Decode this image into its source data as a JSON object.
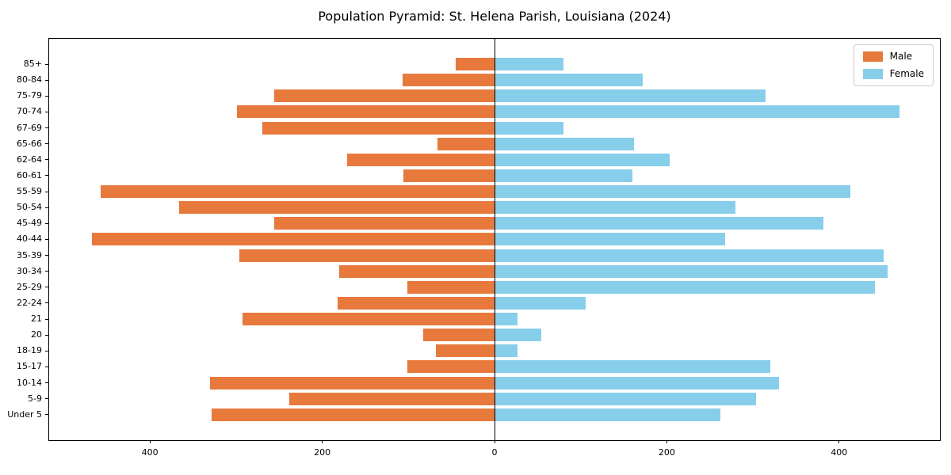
{
  "title": "Population Pyramid: St. Helena Parish, Louisiana (2024)",
  "legend": {
    "items": [
      {
        "label": "Male"
      },
      {
        "label": "Female"
      }
    ]
  },
  "colors": {
    "male": "#e8793d",
    "female": "#87ceeb",
    "axis": "#000000"
  },
  "chart_data": {
    "type": "bar",
    "variant": "population-pyramid",
    "title": "Population Pyramid: St. Helena Parish, Louisiana (2024)",
    "xlabel": "",
    "ylabel": "",
    "grid": false,
    "legend_position": "upper right",
    "categories_top_to_bottom": [
      "85+",
      "80-84",
      "75-79",
      "70-74",
      "67-69",
      "65-66",
      "62-64",
      "60-61",
      "55-59",
      "50-54",
      "45-49",
      "40-44",
      "35-39",
      "30-34",
      "25-29",
      "22-24",
      "21",
      "20",
      "18-19",
      "15-17",
      "10-14",
      "5-9",
      "Under 5"
    ],
    "series": [
      {
        "name": "Male",
        "side": "left",
        "color": "#e8793d",
        "values": [
          45,
          107,
          256,
          299,
          270,
          66,
          171,
          106,
          457,
          366,
          256,
          467,
          296,
          180,
          101,
          182,
          293,
          83,
          68,
          101,
          330,
          238,
          328
        ]
      },
      {
        "name": "Female",
        "side": "right",
        "color": "#87ceeb",
        "values": [
          80,
          172,
          315,
          470,
          80,
          162,
          203,
          160,
          413,
          280,
          382,
          268,
          452,
          456,
          442,
          106,
          27,
          54,
          27,
          320,
          330,
          304,
          262
        ]
      }
    ],
    "x_axis": {
      "xlim": [
        -517,
        517
      ],
      "ticks": [
        {
          "value": -400,
          "label": "400"
        },
        {
          "value": -200,
          "label": "200"
        },
        {
          "value": 0,
          "label": "0"
        },
        {
          "value": 200,
          "label": "200"
        },
        {
          "value": 400,
          "label": "400"
        }
      ]
    }
  }
}
